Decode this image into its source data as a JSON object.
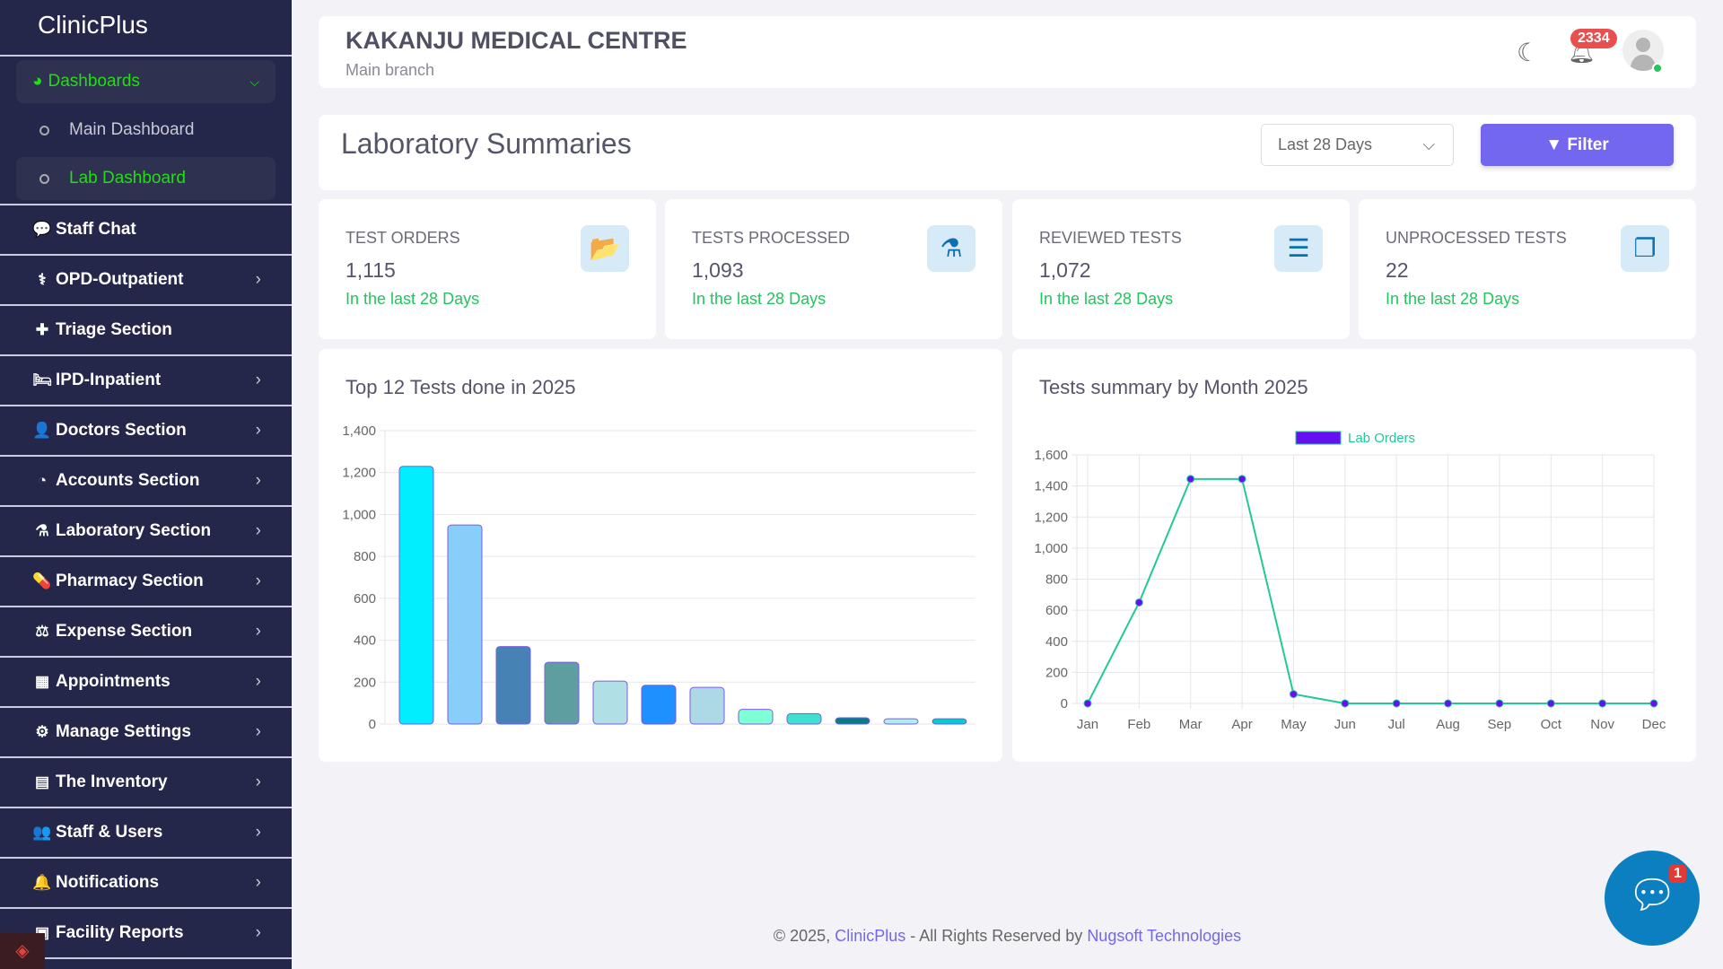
{
  "app": {
    "logo": "ClinicPlus"
  },
  "sidebar": {
    "dashboards": "Dashboards",
    "subitems": [
      "Main Dashboard",
      "Lab Dashboard"
    ],
    "items": [
      {
        "label": "Staff Chat",
        "icon": "comments-icon",
        "glyph": "💬",
        "chevron": false
      },
      {
        "label": "OPD-Outpatient",
        "icon": "stethoscope-icon",
        "glyph": "⚕",
        "chevron": true
      },
      {
        "label": "Triage Section",
        "icon": "thermometer-icon",
        "glyph": "✚",
        "chevron": false
      },
      {
        "label": "IPD-Inpatient",
        "icon": "bed-icon",
        "glyph": "🛏",
        "chevron": true
      },
      {
        "label": "Doctors Section",
        "icon": "doctor-icon",
        "glyph": "👤",
        "chevron": true
      },
      {
        "label": "Accounts Section",
        "icon": "dashboard-icon",
        "glyph": "◔",
        "chevron": true
      },
      {
        "label": "Laboratory Section",
        "icon": "flask-icon",
        "glyph": "⚗",
        "chevron": true
      },
      {
        "label": "Pharmacy Section",
        "icon": "pills-icon",
        "glyph": "💊",
        "chevron": true
      },
      {
        "label": "Expense Section",
        "icon": "balance-scale-icon",
        "glyph": "⚖",
        "chevron": true
      },
      {
        "label": "Appointments",
        "icon": "calendar-icon",
        "glyph": "▦",
        "chevron": true
      },
      {
        "label": "Manage Settings",
        "icon": "gear-icon",
        "glyph": "⚙",
        "chevron": true
      },
      {
        "label": "The Inventory",
        "icon": "warehouse-icon",
        "glyph": "▤",
        "chevron": true
      },
      {
        "label": "Staff & Users",
        "icon": "users-icon",
        "glyph": "👥",
        "chevron": true
      },
      {
        "label": "Notifications",
        "icon": "bell-icon",
        "glyph": "🔔",
        "chevron": true
      },
      {
        "label": "Facility Reports",
        "icon": "report-icon",
        "glyph": "▣",
        "chevron": true
      }
    ]
  },
  "header": {
    "title": "KAKANJU MEDICAL CENTRE",
    "subtitle": "Main branch",
    "notification_count": "2334"
  },
  "summary": {
    "title": "Laboratory Summaries",
    "period": "Last 28 Days",
    "filter_label": "Filter"
  },
  "stats": [
    {
      "label": "TEST ORDERS",
      "value": "1,115",
      "note": "In the last 28 Days",
      "icon": "folder-open-icon",
      "glyph": "📂"
    },
    {
      "label": "TESTS PROCESSED",
      "value": "1,093",
      "note": "In the last 28 Days",
      "icon": "flask-icon",
      "glyph": "⚗"
    },
    {
      "label": "REVIEWED TESTS",
      "value": "1,072",
      "note": "In the last 28 Days",
      "icon": "list-icon",
      "glyph": "☰"
    },
    {
      "label": "UNPROCESSED TESTS",
      "value": "22",
      "note": "In the last 28 Days",
      "icon": "clone-icon",
      "glyph": "❐"
    }
  ],
  "chart_data": [
    {
      "type": "bar",
      "title": "Top 12 Tests done in 2025",
      "categories": [
        "",
        "",
        "",
        "",
        "",
        "",
        "",
        "",
        "",
        "",
        "",
        ""
      ],
      "values": [
        1230,
        950,
        370,
        295,
        205,
        185,
        175,
        70,
        50,
        30,
        25,
        25
      ],
      "colors": [
        "#00eeff",
        "#87cefa",
        "#4682b4",
        "#5f9ea0",
        "#b0e0e6",
        "#1e90ff",
        "#add8e6",
        "#7fffd4",
        "#40e0d0",
        "#008080",
        "#afeeee",
        "#00ced1"
      ],
      "ylim": [
        0,
        1400
      ],
      "yticks": [
        0,
        200,
        400,
        600,
        800,
        1000,
        1200,
        1400
      ],
      "yticklabels": [
        "0",
        "200",
        "400",
        "600",
        "800",
        "1,000",
        "1,200",
        "1,400"
      ],
      "grid": true
    },
    {
      "type": "line",
      "title": "Tests summary by Month 2025",
      "x": [
        "Jan",
        "Feb",
        "Mar",
        "Apr",
        "May",
        "Jun",
        "Jul",
        "Aug",
        "Sep",
        "Oct",
        "Nov",
        "Dec"
      ],
      "series": [
        {
          "name": "Lab Orders",
          "values": [
            0,
            650,
            1445,
            1445,
            60,
            0,
            0,
            0,
            0,
            0,
            0,
            0
          ],
          "color": "#20c997",
          "point_color": "#6610f2"
        }
      ],
      "ylim": [
        0,
        1600
      ],
      "yticks": [
        0,
        200,
        400,
        600,
        800,
        1000,
        1200,
        1400,
        1600
      ],
      "yticklabels": [
        "0",
        "200",
        "400",
        "600",
        "800",
        "1,000",
        "1,200",
        "1,400",
        "1,600"
      ],
      "legend": "top-center",
      "grid": true
    }
  ],
  "footer": {
    "prefix": "© 2025, ",
    "brand": "ClinicPlus",
    "middle": " - All Rights Reserved by ",
    "company": "Nugsoft Technologies"
  },
  "chat": {
    "unread": "1"
  }
}
